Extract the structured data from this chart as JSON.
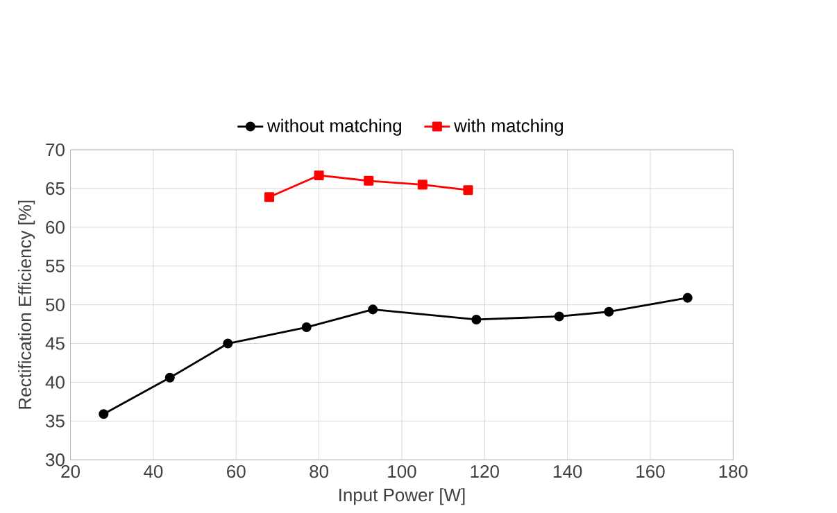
{
  "chart_data": {
    "type": "line",
    "xlabel": "Input Power [W]",
    "ylabel": "Rectification Efficiency [%]",
    "xlim": [
      20,
      180
    ],
    "xticks": [
      20,
      40,
      60,
      80,
      100,
      120,
      140,
      160,
      180
    ],
    "ylim": [
      30,
      70
    ],
    "yticks": [
      30,
      35,
      40,
      45,
      50,
      55,
      60,
      65,
      70
    ],
    "grid": true,
    "legend": "top",
    "series": [
      {
        "name": "without matching",
        "color": "#000000",
        "marker": "circle",
        "x": [
          28,
          44,
          58,
          77,
          93,
          118,
          138,
          150,
          169
        ],
        "values": [
          35.9,
          40.6,
          45.0,
          47.1,
          49.4,
          48.1,
          48.5,
          49.1,
          50.9
        ]
      },
      {
        "name": "with matching",
        "color": "#ff0000",
        "marker": "square",
        "x": [
          68,
          80,
          92,
          105,
          116
        ],
        "values": [
          63.9,
          66.7,
          66.0,
          65.5,
          64.8
        ]
      }
    ]
  }
}
